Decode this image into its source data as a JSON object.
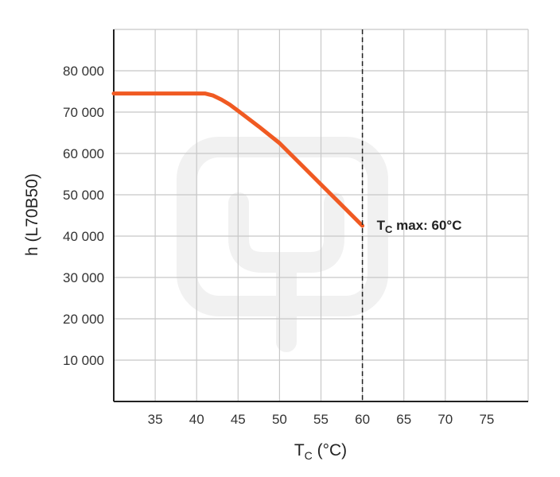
{
  "chart_data": {
    "type": "line",
    "xlabel_main": "T",
    "xlabel_sub": "C",
    "xlabel_unit": " (°C)",
    "ylabel": "h (L70B50)",
    "xlim": [
      30,
      80
    ],
    "ylim": [
      0,
      90000
    ],
    "x_ticks": [
      35,
      40,
      45,
      50,
      55,
      60,
      65,
      70,
      75
    ],
    "x_grid": [
      30,
      35,
      40,
      45,
      50,
      55,
      60,
      65,
      70,
      75,
      80
    ],
    "y_ticks": [
      10000,
      20000,
      30000,
      40000,
      50000,
      60000,
      70000,
      80000
    ],
    "y_tick_labels": [
      "10 000",
      "20 000",
      "30 000",
      "40 000",
      "50 000",
      "60 000",
      "70 000",
      "80 000"
    ],
    "grid": true,
    "series": [
      {
        "color": "#f05a22",
        "x": [
          30,
          35,
          40,
          41,
          42,
          43,
          44,
          45,
          47.5,
          50,
          52.5,
          55,
          57.5,
          60
        ],
        "y": [
          74500,
          74500,
          74500,
          74500,
          74000,
          73000,
          71800,
          70300,
          66500,
          62500,
          57500,
          52500,
          47500,
          42500
        ]
      }
    ],
    "annotation": {
      "x": 60,
      "text_main": "T",
      "text_sub": "C",
      "text_rest": " max: 60°C",
      "line_style": "dashed"
    }
  },
  "colors": {
    "grid": "#c8c8c8",
    "axis": "#222222",
    "line": "#f05a22",
    "watermark": "#f1f1f1"
  }
}
